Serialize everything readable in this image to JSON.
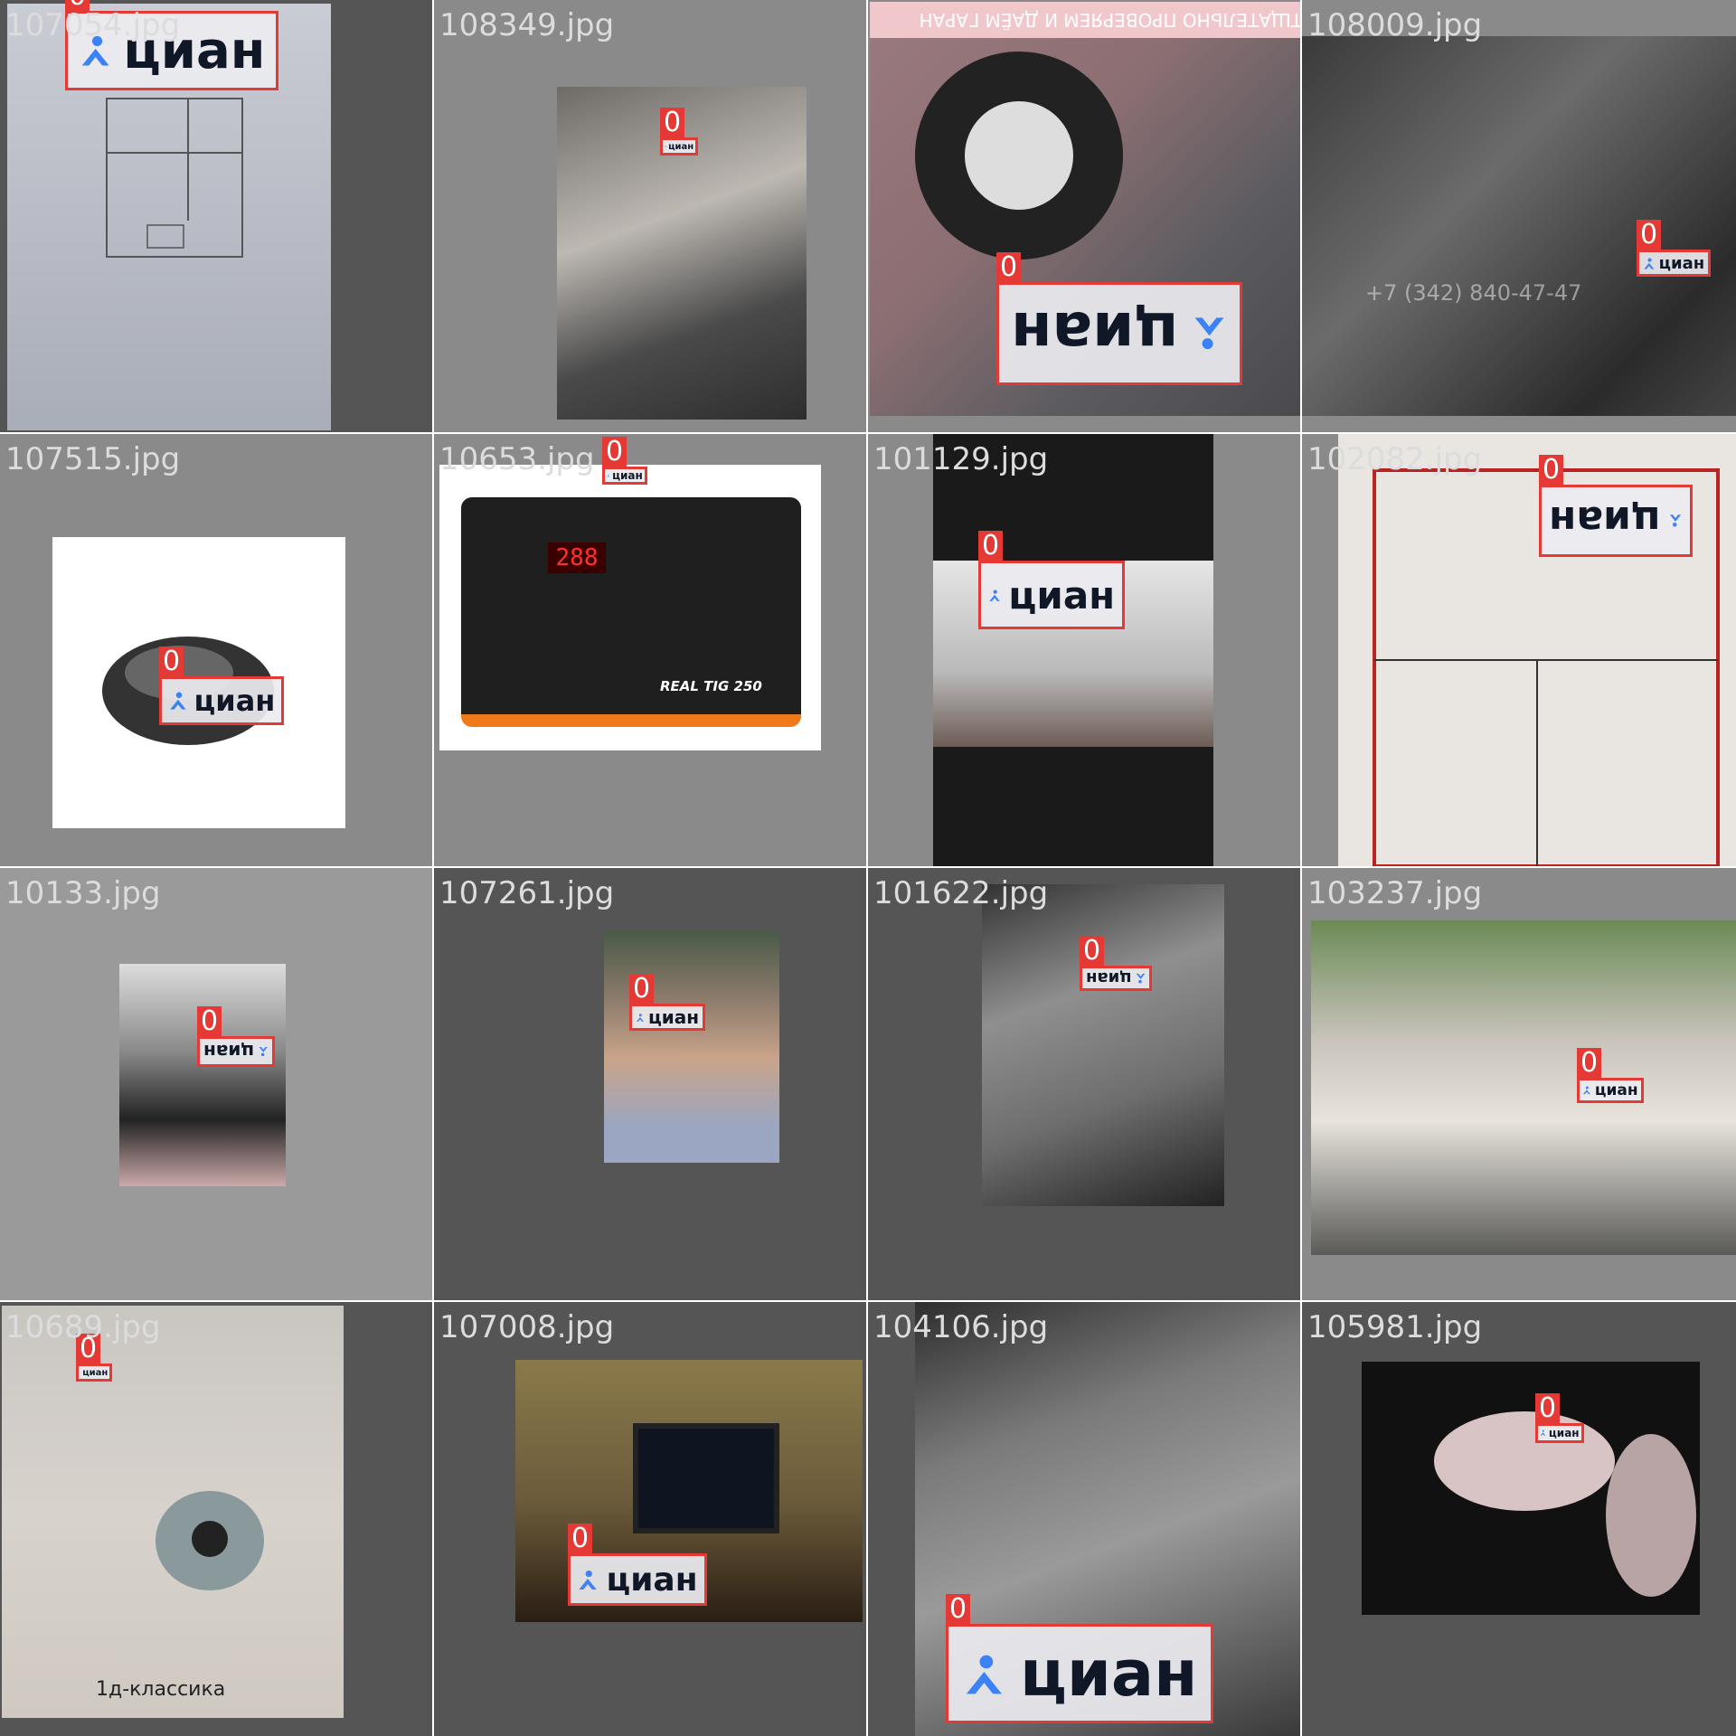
{
  "class_label": "0",
  "logo_text": "циан",
  "logo_icon": "pin-person-icon",
  "colors": {
    "box": "#e53935",
    "logo_blue": "#3b82f6",
    "bg_dark": "#555555",
    "bg_mid": "#8a8a8a",
    "filename_text": "#dcdcdc"
  },
  "tiles": [
    {
      "filename": "107054.jpg"
    },
    {
      "filename": "108349.jpg"
    },
    {
      "filename": "",
      "banner_text": "ТЩАТЕЛЬНО ПРОВЕРЯЕМ И ДАЁМ ГАРАН"
    },
    {
      "filename": "108009.jpg",
      "overlay_text": "+7 (342) 840-47-47"
    },
    {
      "filename": "107515.jpg"
    },
    {
      "filename": "10653.jpg",
      "device_text": "REAL TIG 250",
      "display_text": "288"
    },
    {
      "filename": "101129.jpg"
    },
    {
      "filename": "102082.jpg"
    },
    {
      "filename": "10133.jpg"
    },
    {
      "filename": "107261.jpg"
    },
    {
      "filename": "101622.jpg"
    },
    {
      "filename": "103237.jpg"
    },
    {
      "filename": "10689.jpg",
      "caption": "1д-классика"
    },
    {
      "filename": "107008.jpg"
    },
    {
      "filename": "104106.jpg"
    },
    {
      "filename": "105981.jpg"
    }
  ]
}
